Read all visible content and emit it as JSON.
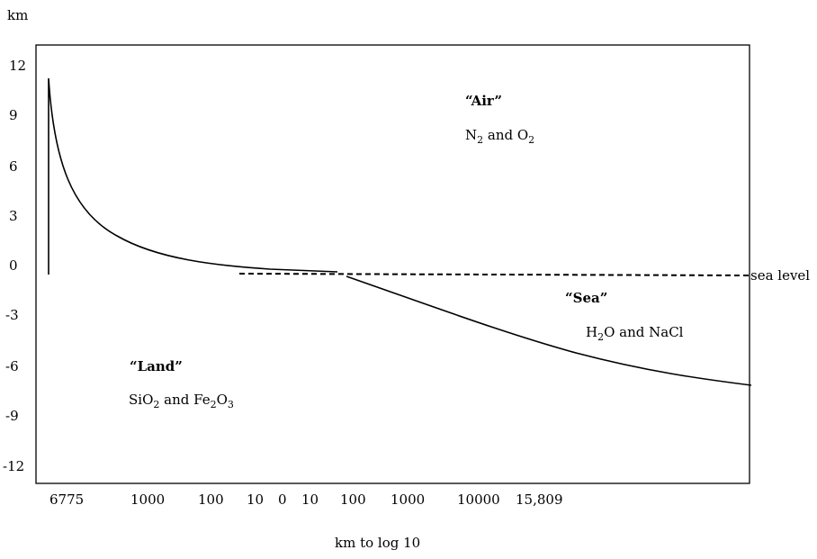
{
  "chart_data": {
    "type": "line",
    "title": "",
    "ylabel": "km",
    "xlabel": "km to log 10",
    "yticks": [
      "12",
      "9",
      "6",
      "3",
      "0",
      "-3",
      "-6",
      "-9",
      "-12"
    ],
    "xticks": [
      "6775",
      "1000",
      "100",
      "10",
      "0",
      "10",
      "100",
      "1000",
      "10000",
      "15,809"
    ],
    "reference_line": {
      "label": "sea level",
      "y": 0,
      "style": "dashed"
    },
    "regions": [
      {
        "title": "“Air”",
        "formula": "N2 and O2"
      },
      {
        "title": "“Sea”",
        "formula": "H2O and NaCl"
      },
      {
        "title": "“Land”",
        "formula": "SiO2 and Fe2O3"
      }
    ],
    "series": [
      {
        "curve": "land-elevation",
        "x": [
          "6775",
          "6000",
          "4000",
          "2000",
          "1000",
          "500",
          "100",
          "10",
          "0"
        ],
        "y": [
          11.2,
          6.5,
          4.2,
          2.2,
          1.2,
          0.6,
          0.1,
          -0.1,
          -0.4
        ]
      },
      {
        "curve": "ocean-depth",
        "x": [
          "0",
          "100",
          "1000",
          "5000",
          "10000",
          "15,809"
        ],
        "y": [
          -0.4,
          -2.0,
          -3.8,
          -5.4,
          -6.2,
          -6.7
        ]
      }
    ]
  }
}
